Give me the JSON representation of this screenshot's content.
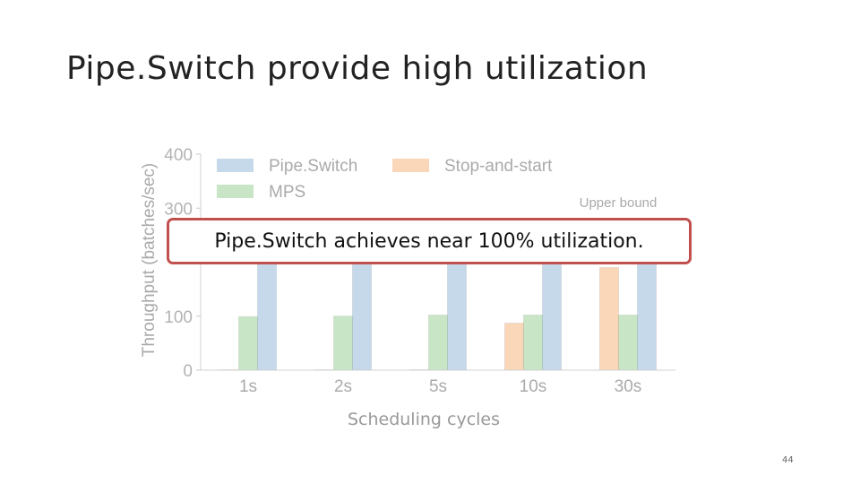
{
  "slide": {
    "title": "Pipe.Switch provide high utilization",
    "callout": "Pipe.Switch achieves near 100% utilization.",
    "page_number": "44"
  },
  "chart_data": {
    "type": "bar",
    "categories": [
      "1s",
      "2s",
      "5s",
      "10s",
      "30s"
    ],
    "series": [
      {
        "name": "Stop-and-start",
        "color": "#fad7b9",
        "values": [
          1,
          1,
          1,
          87,
          190
        ]
      },
      {
        "name": "MPS",
        "color": "#c8e5c6",
        "values": [
          99,
          100,
          102,
          102,
          102
        ]
      },
      {
        "name": "Pipe.Switch",
        "color": "#c5d9ea",
        "values": [
          200,
          200,
          200,
          200,
          200
        ]
      }
    ],
    "title": "",
    "xlabel": "Scheduling cycles",
    "ylabel": "Throughput (batches/sec)",
    "ylim": [
      0,
      400
    ],
    "yticks": [
      0,
      100,
      300,
      400
    ],
    "annotation": "Upper bound",
    "legend": [
      "Pipe.Switch",
      "Stop-and-start",
      "MPS"
    ],
    "legend_position": "top",
    "grid": false
  }
}
